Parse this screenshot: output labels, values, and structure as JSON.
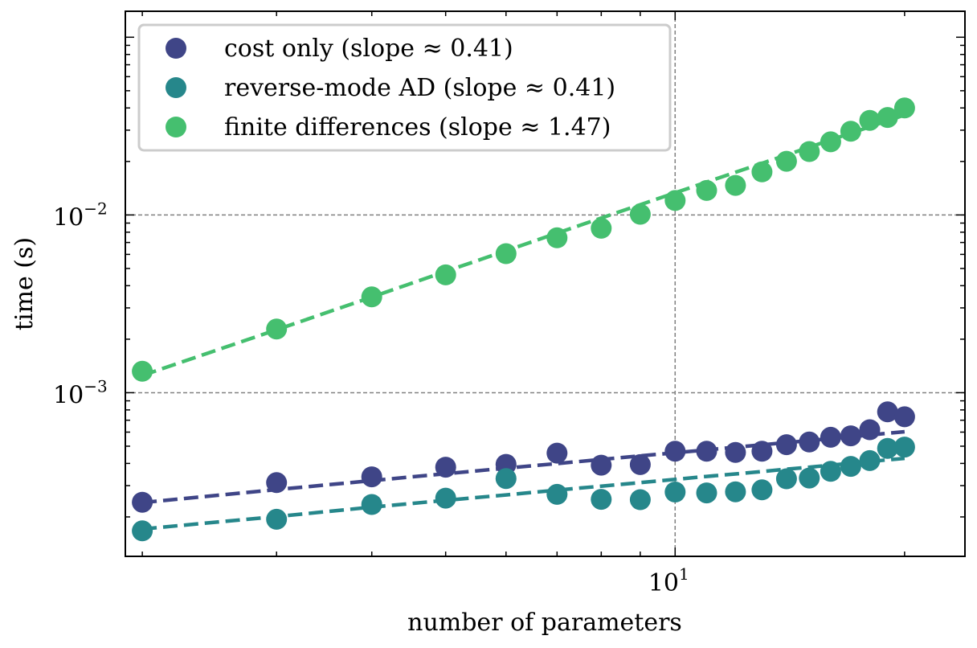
{
  "chart_data": {
    "type": "scatter",
    "xlabel": "number of parameters",
    "ylabel": "time (s)",
    "xscale": "log",
    "yscale": "log",
    "xlim": [
      1.9,
      24
    ],
    "ylim": [
      0.00012,
      0.14
    ],
    "x_ticks": [
      {
        "value": 10,
        "base": "10",
        "exp": "1"
      }
    ],
    "y_ticks": [
      {
        "value": 0.001,
        "base": "10",
        "exp": "−3"
      },
      {
        "value": 0.01,
        "base": "10",
        "exp": "−2"
      }
    ],
    "grid": true,
    "legend_position": "top-left",
    "x": [
      2,
      3,
      4,
      5,
      6,
      7,
      8,
      9,
      10,
      11,
      12,
      13,
      14,
      15,
      16,
      17,
      18,
      19,
      20
    ],
    "series": [
      {
        "name": "cost only (slope ≈ 0.41)",
        "color": "#3f4587",
        "values": [
          0.000242,
          0.000312,
          0.000336,
          0.000381,
          0.000395,
          0.000457,
          0.000391,
          0.000394,
          0.000468,
          0.000468,
          0.000461,
          0.000468,
          0.00051,
          0.000528,
          0.000561,
          0.000572,
          0.000619,
          0.00078,
          0.000732
        ],
        "fit": [
          0.000241,
          0.000285,
          0.00032,
          0.00035,
          0.000376,
          0.000399,
          0.000421,
          0.000441,
          0.000459,
          0.000477,
          0.000493,
          0.000509,
          0.000524,
          0.000538,
          0.000552,
          0.000566,
          0.000578,
          0.000591,
          0.000603
        ]
      },
      {
        "name": "reverse-mode AD (slope ≈ 0.41)",
        "color": "#26878b",
        "values": [
          0.000167,
          0.000194,
          0.000235,
          0.000255,
          0.000329,
          0.000268,
          0.000251,
          0.00025,
          0.000276,
          0.000273,
          0.000277,
          0.000284,
          0.000328,
          0.000331,
          0.000361,
          0.000385,
          0.000415,
          0.000486,
          0.000494
        ],
        "fit": [
          0.000171,
          0.000201,
          0.000227,
          0.000248,
          0.000266,
          0.000283,
          0.000298,
          0.000312,
          0.000325,
          0.000338,
          0.000349,
          0.00036,
          0.000371,
          0.000381,
          0.000391,
          0.000401,
          0.00041,
          0.000419,
          0.000427
        ]
      },
      {
        "name": "finite differences (slope ≈ 1.47)",
        "color": "#45bf6f",
        "values": [
          0.00132,
          0.00228,
          0.00346,
          0.0046,
          0.00606,
          0.00744,
          0.00842,
          0.01009,
          0.01206,
          0.01373,
          0.01467,
          0.01748,
          0.02005,
          0.02275,
          0.0258,
          0.02957,
          0.03408,
          0.03537,
          0.03999
        ],
        "fit": [
          0.00125,
          0.00226,
          0.00345,
          0.00481,
          0.00629,
          0.0079,
          0.00961,
          0.01142,
          0.01332,
          0.01531,
          0.01738,
          0.01953,
          0.02175,
          0.02405,
          0.02641,
          0.02884,
          0.03134,
          0.0339,
          0.03651
        ]
      }
    ]
  }
}
